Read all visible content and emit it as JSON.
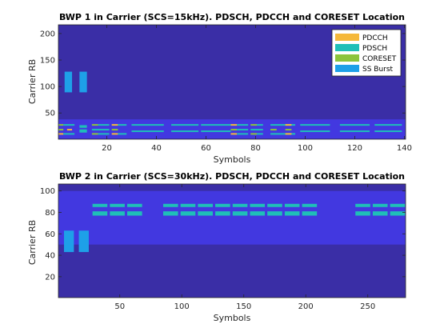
{
  "colors": {
    "background": "#3a2ea6",
    "bwp": "#4238e0",
    "pdcch": "#f5b83a",
    "pdsch": "#1fbfb8",
    "coreset": "#8cc43c",
    "ssburst": "#1ea0e8"
  },
  "chart_data": [
    {
      "type": "heatmap",
      "title": "BWP 1 in Carrier (SCS=15kHz). PDSCH, PDCCH and CORESET Location",
      "xlabel": "Symbols",
      "ylabel": "Carrier RB",
      "xlim": [
        0.5,
        140.5
      ],
      "ylim": [
        0.5,
        216.5
      ],
      "xticks": [
        20,
        40,
        60,
        80,
        100,
        120,
        140
      ],
      "yticks": [
        50,
        100,
        150,
        200
      ],
      "legend": {
        "position": "top-right",
        "entries": [
          {
            "label": "PDCCH",
            "color_key": "pdcch"
          },
          {
            "label": "PDSCH",
            "color_key": "pdsch"
          },
          {
            "label": "CORESET",
            "color_key": "coreset"
          },
          {
            "label": "SS Burst",
            "color_key": "ssburst"
          }
        ]
      },
      "regions": [
        {
          "kind": "bwp",
          "x": [
            0.5,
            140.5
          ],
          "y": [
            1,
            38
          ]
        },
        {
          "kind": "ssburst",
          "x": [
            3,
            6
          ],
          "y": [
            89,
            128
          ]
        },
        {
          "kind": "ssburst",
          "x": [
            9,
            12
          ],
          "y": [
            89,
            128
          ]
        },
        {
          "kind": "coreset",
          "x": [
            0.5,
            2.5
          ],
          "y": [
            17,
            20
          ]
        },
        {
          "kind": "pdcch",
          "x": [
            0.5,
            2.5
          ],
          "y": [
            9,
            12
          ]
        },
        {
          "kind": "coreset",
          "x": [
            0.5,
            2.5
          ],
          "y": [
            26,
            29
          ]
        },
        {
          "kind": "pdsch",
          "x": [
            2.5,
            7
          ],
          "y": [
            9,
            12
          ]
        },
        {
          "kind": "pdsch",
          "x": [
            2.5,
            7
          ],
          "y": [
            26,
            29
          ]
        },
        {
          "kind": "pdcch",
          "x": [
            4,
            6
          ],
          "y": [
            17,
            20
          ]
        },
        {
          "kind": "pdsch",
          "x": [
            9,
            12
          ],
          "y": [
            13,
            19
          ]
        },
        {
          "kind": "pdsch",
          "x": [
            9,
            12
          ],
          "y": [
            22,
            27
          ]
        },
        {
          "kind": "coreset",
          "x": [
            14,
            16.5
          ],
          "y": [
            9,
            12
          ]
        },
        {
          "kind": "coreset",
          "x": [
            14,
            16.5
          ],
          "y": [
            26,
            29
          ]
        },
        {
          "kind": "pdsch",
          "x": [
            16.5,
            21
          ],
          "y": [
            9,
            12
          ]
        },
        {
          "kind": "pdsch",
          "x": [
            16.5,
            21
          ],
          "y": [
            26,
            29
          ]
        },
        {
          "kind": "pdsch",
          "x": [
            14,
            21
          ],
          "y": [
            17,
            20
          ]
        },
        {
          "kind": "pdcch",
          "x": [
            22,
            24.5
          ],
          "y": [
            9,
            12
          ]
        },
        {
          "kind": "pdcch",
          "x": [
            22,
            24.5
          ],
          "y": [
            26,
            29
          ]
        },
        {
          "kind": "coreset",
          "x": [
            22,
            24.5
          ],
          "y": [
            17,
            20
          ]
        },
        {
          "kind": "pdsch",
          "x": [
            24.5,
            28
          ],
          "y": [
            9,
            12
          ]
        },
        {
          "kind": "pdsch",
          "x": [
            24.5,
            28
          ],
          "y": [
            26,
            29
          ]
        },
        {
          "kind": "pdsch",
          "x": [
            30,
            43
          ],
          "y": [
            26,
            29
          ]
        },
        {
          "kind": "pdsch",
          "x": [
            30,
            43
          ],
          "y": [
            14,
            17
          ]
        },
        {
          "kind": "pdsch",
          "x": [
            46,
            57
          ],
          "y": [
            26,
            29
          ]
        },
        {
          "kind": "pdsch",
          "x": [
            46,
            57
          ],
          "y": [
            14,
            17
          ]
        },
        {
          "kind": "pdsch",
          "x": [
            58,
            70
          ],
          "y": [
            26,
            29
          ]
        },
        {
          "kind": "pdsch",
          "x": [
            58,
            70
          ],
          "y": [
            14,
            17
          ]
        },
        {
          "kind": "pdcch",
          "x": [
            70,
            72.5
          ],
          "y": [
            9,
            12
          ]
        },
        {
          "kind": "pdcch",
          "x": [
            70,
            72.5
          ],
          "y": [
            26,
            29
          ]
        },
        {
          "kind": "coreset",
          "x": [
            70,
            72.5
          ],
          "y": [
            17,
            20
          ]
        },
        {
          "kind": "pdsch",
          "x": [
            72.5,
            77
          ],
          "y": [
            9,
            12
          ]
        },
        {
          "kind": "pdsch",
          "x": [
            72.5,
            77
          ],
          "y": [
            26,
            29
          ]
        },
        {
          "kind": "pdsch",
          "x": [
            72.5,
            77
          ],
          "y": [
            17,
            20
          ]
        },
        {
          "kind": "coreset",
          "x": [
            78,
            80.5
          ],
          "y": [
            9,
            12
          ]
        },
        {
          "kind": "coreset",
          "x": [
            78,
            80.5
          ],
          "y": [
            26,
            29
          ]
        },
        {
          "kind": "pdsch",
          "x": [
            78,
            83
          ],
          "y": [
            17,
            20
          ]
        },
        {
          "kind": "pdsch",
          "x": [
            80.5,
            83
          ],
          "y": [
            9,
            12
          ]
        },
        {
          "kind": "pdsch",
          "x": [
            80.5,
            83
          ],
          "y": [
            26,
            29
          ]
        },
        {
          "kind": "coreset",
          "x": [
            86,
            88.5
          ],
          "y": [
            17,
            20
          ]
        },
        {
          "kind": "pdsch",
          "x": [
            86,
            96
          ],
          "y": [
            26,
            29
          ]
        },
        {
          "kind": "pdsch",
          "x": [
            86,
            96
          ],
          "y": [
            9,
            12
          ]
        },
        {
          "kind": "pdcch",
          "x": [
            92,
            94.5
          ],
          "y": [
            9,
            12
          ]
        },
        {
          "kind": "pdcch",
          "x": [
            92,
            94.5
          ],
          "y": [
            26,
            29
          ]
        },
        {
          "kind": "coreset",
          "x": [
            92,
            94.5
          ],
          "y": [
            17,
            20
          ]
        },
        {
          "kind": "pdsch",
          "x": [
            98,
            110
          ],
          "y": [
            26,
            29
          ]
        },
        {
          "kind": "pdsch",
          "x": [
            98,
            110
          ],
          "y": [
            14,
            17
          ]
        },
        {
          "kind": "pdsch",
          "x": [
            114,
            126
          ],
          "y": [
            26,
            29
          ]
        },
        {
          "kind": "pdsch",
          "x": [
            114,
            126
          ],
          "y": [
            14,
            17
          ]
        },
        {
          "kind": "pdsch",
          "x": [
            128,
            139
          ],
          "y": [
            26,
            29
          ]
        },
        {
          "kind": "pdsch",
          "x": [
            128,
            139
          ],
          "y": [
            14,
            17
          ]
        }
      ]
    },
    {
      "type": "heatmap",
      "title": "BWP 2 in Carrier (SCS=30kHz). PDSCH, PDCCH and CORESET Location",
      "xlabel": "Symbols",
      "ylabel": "Carrier RB",
      "xlim": [
        0.5,
        280.5
      ],
      "ylim": [
        0.5,
        106.5
      ],
      "xticks": [
        50,
        100,
        150,
        200,
        250
      ],
      "yticks": [
        20,
        40,
        60,
        80,
        100
      ],
      "regions": [
        {
          "kind": "bwp",
          "x": [
            0.5,
            280.5
          ],
          "y": [
            50,
            100
          ]
        },
        {
          "kind": "ssburst",
          "x": [
            5,
            13
          ],
          "y": [
            43,
            63
          ]
        },
        {
          "kind": "ssburst",
          "x": [
            17,
            25
          ],
          "y": [
            43,
            63
          ]
        },
        {
          "kind": "pdsch",
          "x": [
            28,
            40
          ],
          "y": [
            85,
            88
          ]
        },
        {
          "kind": "pdsch",
          "x": [
            28,
            40
          ],
          "y": [
            77,
            81
          ]
        },
        {
          "kind": "pdsch",
          "x": [
            42,
            54
          ],
          "y": [
            85,
            88
          ]
        },
        {
          "kind": "pdsch",
          "x": [
            42,
            54
          ],
          "y": [
            77,
            81
          ]
        },
        {
          "kind": "pdsch",
          "x": [
            56,
            68
          ],
          "y": [
            85,
            88
          ]
        },
        {
          "kind": "pdsch",
          "x": [
            56,
            68
          ],
          "y": [
            77,
            81
          ]
        },
        {
          "kind": "pdsch",
          "x": [
            85,
            97
          ],
          "y": [
            85,
            88
          ]
        },
        {
          "kind": "pdsch",
          "x": [
            85,
            97
          ],
          "y": [
            77,
            81
          ]
        },
        {
          "kind": "pdsch",
          "x": [
            99,
            111
          ],
          "y": [
            85,
            88
          ]
        },
        {
          "kind": "pdsch",
          "x": [
            99,
            111
          ],
          "y": [
            77,
            81
          ]
        },
        {
          "kind": "pdsch",
          "x": [
            113,
            125
          ],
          "y": [
            85,
            88
          ]
        },
        {
          "kind": "pdsch",
          "x": [
            113,
            125
          ],
          "y": [
            77,
            81
          ]
        },
        {
          "kind": "pdsch",
          "x": [
            127,
            139
          ],
          "y": [
            85,
            88
          ]
        },
        {
          "kind": "pdsch",
          "x": [
            127,
            139
          ],
          "y": [
            77,
            81
          ]
        },
        {
          "kind": "pdsch",
          "x": [
            141,
            153
          ],
          "y": [
            85,
            88
          ]
        },
        {
          "kind": "pdsch",
          "x": [
            141,
            153
          ],
          "y": [
            77,
            81
          ]
        },
        {
          "kind": "pdsch",
          "x": [
            155,
            167
          ],
          "y": [
            85,
            88
          ]
        },
        {
          "kind": "pdsch",
          "x": [
            155,
            167
          ],
          "y": [
            77,
            81
          ]
        },
        {
          "kind": "pdsch",
          "x": [
            169,
            181
          ],
          "y": [
            85,
            88
          ]
        },
        {
          "kind": "pdsch",
          "x": [
            169,
            181
          ],
          "y": [
            77,
            81
          ]
        },
        {
          "kind": "pdsch",
          "x": [
            183,
            195
          ],
          "y": [
            85,
            88
          ]
        },
        {
          "kind": "pdsch",
          "x": [
            183,
            195
          ],
          "y": [
            77,
            81
          ]
        },
        {
          "kind": "pdsch",
          "x": [
            197,
            209
          ],
          "y": [
            85,
            88
          ]
        },
        {
          "kind": "pdsch",
          "x": [
            197,
            209
          ],
          "y": [
            77,
            81
          ]
        },
        {
          "kind": "pdsch",
          "x": [
            240,
            252
          ],
          "y": [
            85,
            88
          ]
        },
        {
          "kind": "pdsch",
          "x": [
            240,
            252
          ],
          "y": [
            77,
            81
          ]
        },
        {
          "kind": "pdsch",
          "x": [
            254,
            266
          ],
          "y": [
            85,
            88
          ]
        },
        {
          "kind": "pdsch",
          "x": [
            254,
            266
          ],
          "y": [
            77,
            81
          ]
        },
        {
          "kind": "pdsch",
          "x": [
            268,
            280
          ],
          "y": [
            85,
            88
          ]
        },
        {
          "kind": "pdsch",
          "x": [
            268,
            280
          ],
          "y": [
            77,
            81
          ]
        }
      ]
    }
  ]
}
